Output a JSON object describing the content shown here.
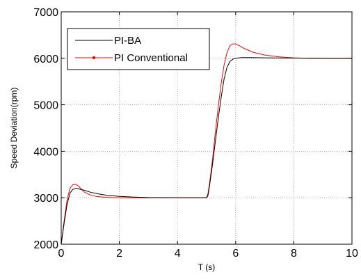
{
  "chart_data": {
    "type": "line",
    "title": "",
    "xlabel": "T (s)",
    "ylabel": "Speed Deviation(rpm)",
    "xlim": [
      0,
      10
    ],
    "ylim": [
      2000,
      7000
    ],
    "xticks": [
      0,
      2,
      4,
      6,
      8,
      10
    ],
    "yticks": [
      2000,
      3000,
      4000,
      5000,
      6000,
      7000
    ],
    "xtick_labels": [
      "0",
      "2",
      "4",
      "6",
      "8",
      "10"
    ],
    "ytick_labels": [
      "2000",
      "3000",
      "4000",
      "5000",
      "6000",
      "7000"
    ],
    "grid": true,
    "legend_position": "top-left",
    "series": [
      {
        "name": "PI-BA",
        "color": "#000000",
        "x": [
          0,
          0.1,
          0.2,
          0.3,
          0.4,
          0.5,
          0.6,
          0.8,
          1.0,
          1.3,
          1.6,
          2.0,
          2.5,
          3.0,
          4.0,
          5.0,
          5.05,
          5.1,
          5.2,
          5.3,
          5.4,
          5.5,
          5.6,
          5.7,
          5.8,
          5.9,
          6.0,
          6.2,
          6.5,
          7.0,
          8.0,
          9.0,
          10.0
        ],
        "y": [
          2000,
          2450,
          2850,
          3100,
          3180,
          3200,
          3190,
          3160,
          3120,
          3080,
          3050,
          3030,
          3015,
          3005,
          3000,
          3000,
          3050,
          3250,
          3700,
          4200,
          4700,
          5150,
          5550,
          5800,
          5930,
          5980,
          6000,
          6015,
          6015,
          6010,
          6005,
          6000,
          6000
        ]
      },
      {
        "name": "PI Conventional",
        "color": "#ff0000",
        "x": [
          0,
          0.1,
          0.2,
          0.3,
          0.4,
          0.5,
          0.6,
          0.7,
          0.8,
          1.0,
          1.2,
          1.5,
          2.0,
          2.5,
          3.0,
          4.0,
          5.0,
          5.05,
          5.1,
          5.2,
          5.3,
          5.4,
          5.5,
          5.6,
          5.7,
          5.8,
          5.9,
          6.0,
          6.1,
          6.3,
          6.6,
          7.0,
          7.5,
          8.0,
          8.5,
          9.0,
          10.0
        ],
        "y": [
          2000,
          2500,
          2950,
          3200,
          3280,
          3290,
          3250,
          3180,
          3120,
          3060,
          3030,
          3010,
          3000,
          3000,
          3000,
          3000,
          3000,
          3100,
          3300,
          3800,
          4400,
          4950,
          5450,
          5850,
          6120,
          6270,
          6310,
          6310,
          6280,
          6210,
          6130,
          6070,
          6030,
          6010,
          6000,
          6000,
          6000
        ]
      }
    ]
  }
}
